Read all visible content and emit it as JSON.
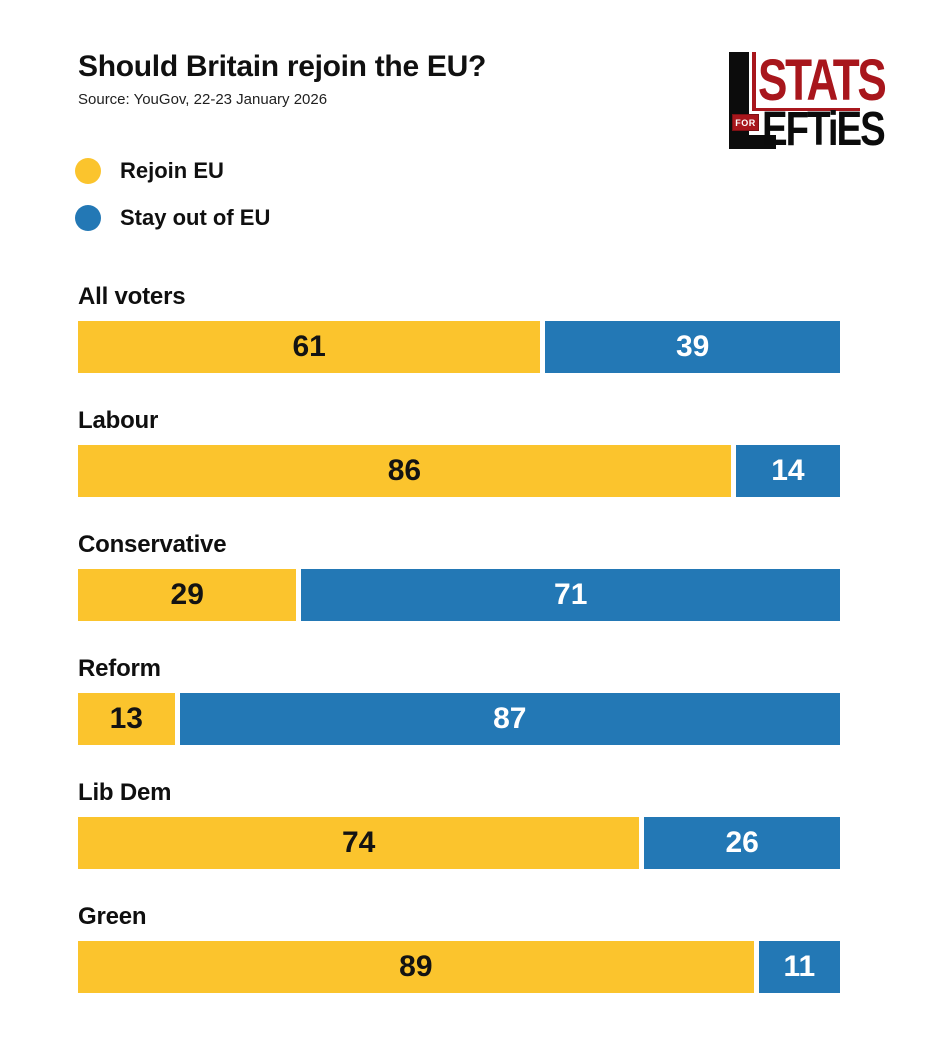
{
  "header": {
    "title": "Should Britain rejoin the EU?",
    "source": "Source: YouGov, 22-23 January 2026"
  },
  "logo": {
    "stats": "STATS",
    "for_badge": "FOR",
    "efties": "EFTiES"
  },
  "legend": {
    "items": [
      {
        "label": "Rejoin EU",
        "color": "#FBC42D"
      },
      {
        "label": "Stay out of EU",
        "color": "#2378B5"
      }
    ]
  },
  "chart_data": {
    "type": "bar",
    "orientation": "horizontal",
    "stacked": true,
    "title": "Should Britain rejoin the EU?",
    "source": "Source: YouGov, 22-23 January 2026",
    "categories": [
      "All voters",
      "Labour",
      "Conservative",
      "Reform",
      "Lib Dem",
      "Green"
    ],
    "series": [
      {
        "name": "Rejoin EU",
        "color": "#FBC42D",
        "value_text_color": "#131313",
        "values": [
          61,
          86,
          29,
          13,
          74,
          89
        ]
      },
      {
        "name": "Stay out of EU",
        "color": "#2378B5",
        "value_text_color": "#FFFFFF",
        "values": [
          39,
          14,
          71,
          87,
          26,
          11
        ]
      }
    ],
    "xlim": [
      0,
      100
    ],
    "grid": false,
    "value_labels": true,
    "legend_position": "top-left"
  },
  "colors": {
    "rejoin_yellow": "#FBC42D",
    "stay_out_blue": "#2378B5",
    "logo_red": "#A8161C",
    "text": "#101010",
    "background": "#FFFFFF"
  }
}
